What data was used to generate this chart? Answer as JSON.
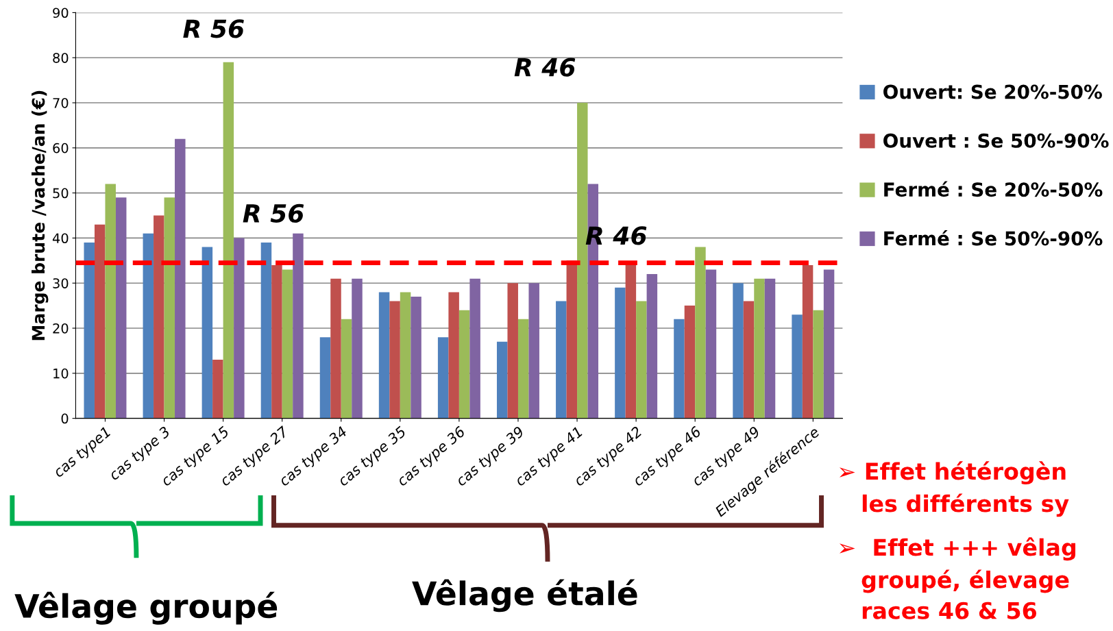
{
  "chart_data": {
    "type": "bar",
    "ylabel": "Marge brute /vache/an (€)",
    "categories": [
      "cas type1",
      "cas type 3",
      "cas type 15",
      "cas type 27",
      "cas type 34",
      "cas type 35",
      "cas type 36",
      "cas type 39",
      "cas type 41",
      "cas type 42",
      "cas type 46",
      "cas type 49",
      "Elevage référence"
    ],
    "series": [
      {
        "name": "Ouvert: Se 20%-50%",
        "color": "#4f81bd",
        "values": [
          39,
          41,
          38,
          39,
          18,
          28,
          18,
          17,
          26,
          29,
          22,
          30,
          23
        ]
      },
      {
        "name": "Ouvert : Se 50%-90%",
        "color": "#c0504d",
        "values": [
          43,
          45,
          13,
          34,
          31,
          26,
          28,
          30,
          35,
          34,
          25,
          26,
          34
        ]
      },
      {
        "name": "Fermé : Se 20%-50%",
        "color": "#9bbb59",
        "values": [
          52,
          49,
          79,
          33,
          22,
          28,
          24,
          22,
          70,
          26,
          38,
          31,
          24
        ]
      },
      {
        "name": "Fermé : Se 50%-90%",
        "color": "#8064a2",
        "values": [
          49,
          62,
          40,
          41,
          31,
          27,
          31,
          30,
          52,
          32,
          33,
          31,
          33
        ]
      }
    ],
    "ylim": [
      0,
      90
    ],
    "yticks": [
      0,
      10,
      20,
      30,
      40,
      50,
      60,
      70,
      80,
      90
    ],
    "grid": "y",
    "legend": "right",
    "ref_lines": [
      {
        "axis": "y",
        "value": 34.5,
        "color": "#ff0000",
        "line_style": "dashed"
      }
    ],
    "annotations": [
      "R 56",
      "R 56",
      "R 46",
      "R 46",
      "Vêlage groupé",
      "Vêlage étalé",
      "➢ Effet hétérogèn\n   les différents sy",
      "➢  Effet +++ vêlag\n   groupé, élevage\n   races 46 & 56"
    ]
  }
}
